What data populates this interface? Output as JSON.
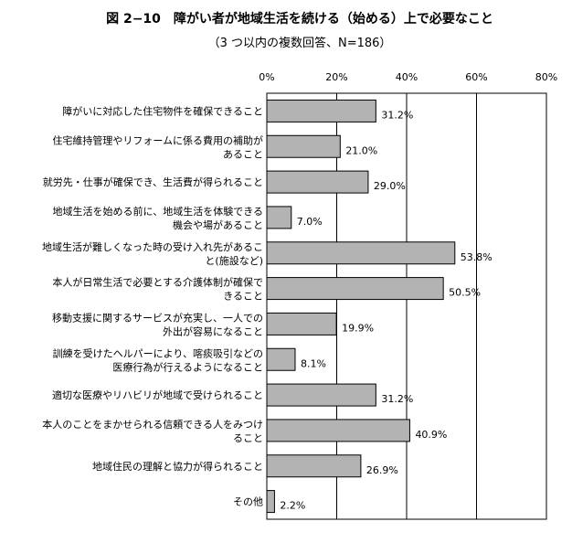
{
  "chart_data": {
    "type": "bar",
    "orientation": "horizontal",
    "title": "図 2−10　障がい者が地域生活を続ける（始める）上で必要なこと",
    "subtitle": "（3 つ以内の複数回答、N=186）",
    "x_ticks": [
      "0%",
      "20%",
      "40%",
      "60%",
      "80%"
    ],
    "xlim": [
      0,
      80
    ],
    "grid": true,
    "bar_color": "#b3b3b3",
    "categories": [
      [
        "障がいに対応した住宅物件を確保できること"
      ],
      [
        "住宅維持管理やリフォームに係る費用の補助が",
        "あること"
      ],
      [
        "就労先・仕事が確保でき、生活費が得られること"
      ],
      [
        "地域生活を始める前に、地域生活を体験できる",
        "機会や場があること"
      ],
      [
        "地域生活が難しくなった時の受け入れ先があるこ",
        "と(施設など)"
      ],
      [
        "本人が日常生活で必要とする介護体制が確保で",
        "きること"
      ],
      [
        "移動支援に関するサービスが充実し、一人での",
        "外出が容易になること"
      ],
      [
        "訓練を受けたヘルパーにより、喀痰吸引などの",
        "医療行為が行えるようになること"
      ],
      [
        "適切な医療やリハビリが地域で受けられること"
      ],
      [
        "本人のことをまかせられる信頼できる人をみつけ",
        "ること"
      ],
      [
        "地域住民の理解と協力が得られること"
      ],
      [
        "その他"
      ]
    ],
    "values": [
      31.2,
      21.0,
      29.0,
      7.0,
      53.8,
      50.5,
      19.9,
      8.1,
      31.2,
      40.9,
      26.9,
      2.2
    ],
    "value_labels": [
      "31.2%",
      "21.0%",
      "29.0%",
      "7.0%",
      "53.8%",
      "50.5%",
      "19.9%",
      "8.1%",
      "31.2%",
      "40.9%",
      "26.9%",
      "2.2%"
    ]
  }
}
